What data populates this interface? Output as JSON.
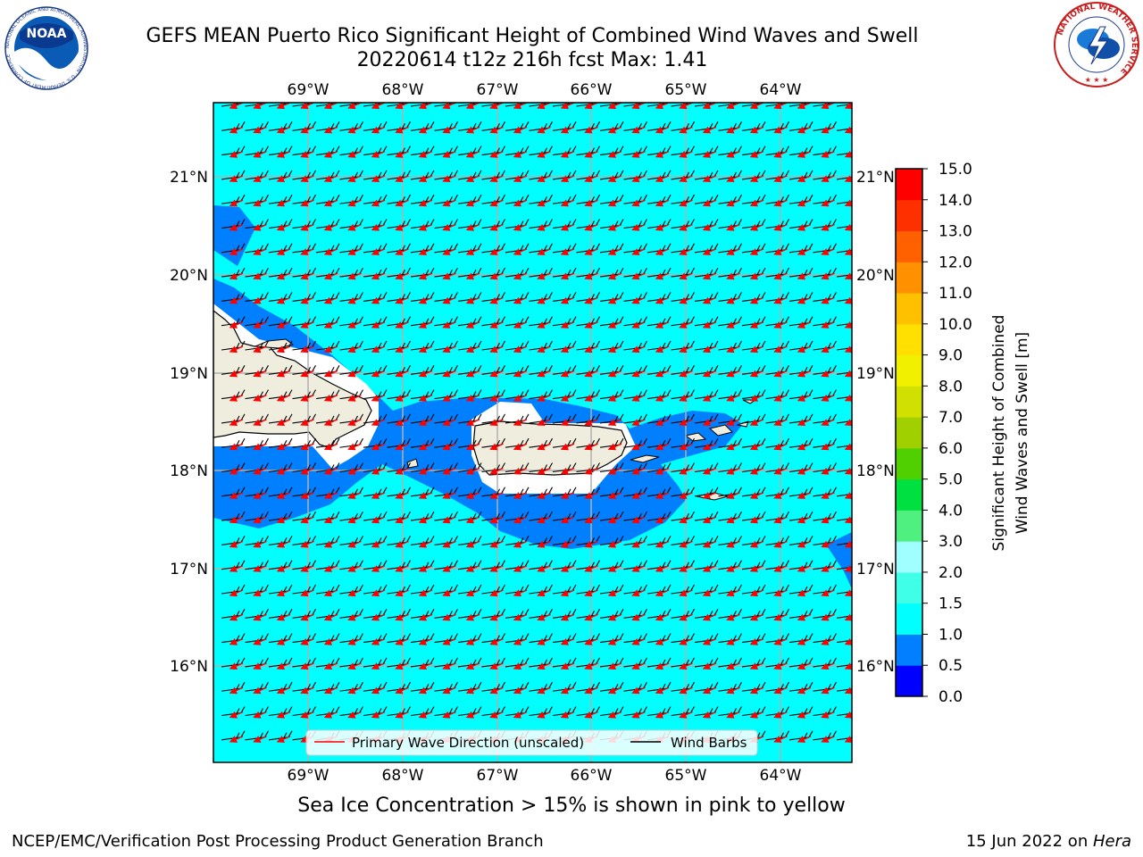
{
  "header": {
    "title_line1": "GEFS MEAN Puerto Rico Significant Height of Combined Wind Waves and Swell",
    "title_line2": "20220614 t12z 216h fcst   Max: 1.41"
  },
  "logos": {
    "noaa_text": "NOAA",
    "noaa_ring_text": "NATIONAL OCEANIC AND ATMOSPHERIC ADMINISTRATION · U.S. DEPARTMENT OF COMMERCE",
    "nws_ring_text": "NATIONAL WEATHER SERVICE"
  },
  "map": {
    "lon_labels": [
      "69°W",
      "68°W",
      "67°W",
      "66°W",
      "65°W",
      "64°W"
    ],
    "lat_labels": [
      "21°N",
      "20°N",
      "19°N",
      "18°N",
      "17°N",
      "16°N"
    ],
    "legend": {
      "wave_label": "Primary Wave Direction (unscaled)",
      "barb_label": "Wind Barbs",
      "wave_color": "#ff0000",
      "barb_color": "#000000"
    },
    "colors": {
      "ocean": "#00ffff",
      "wave_band": "#0080ff",
      "land": "#efedde",
      "gridline": "#b0b0b0"
    }
  },
  "colorbar": {
    "label_line1": "Significant Height of Combined",
    "label_line2": "Wind Waves and Swell [m]",
    "ticks": [
      "0.0",
      "0.5",
      "1.0",
      "1.5",
      "2.0",
      "3.0",
      "4.0",
      "5.0",
      "6.0",
      "7.0",
      "8.0",
      "9.0",
      "10.0",
      "11.0",
      "12.0",
      "13.0",
      "14.0",
      "15.0"
    ],
    "colors": [
      "#0000ff",
      "#0080ff",
      "#00ffff",
      "#40ffe8",
      "#a0ffff",
      "#50f080",
      "#00e040",
      "#50d000",
      "#a0d000",
      "#d0e000",
      "#f0f000",
      "#ffe000",
      "#ffc000",
      "#ff9000",
      "#ff6000",
      "#ff3000",
      "#ff0000"
    ]
  },
  "footer": {
    "note": "Sea Ice Concentration > 15% is shown in pink to yellow",
    "credit_left": "NCEP/EMC/Verification Post Processing Product Generation Branch",
    "credit_right_prefix": "15 Jun 2022 on ",
    "credit_right_host": "Hera"
  }
}
